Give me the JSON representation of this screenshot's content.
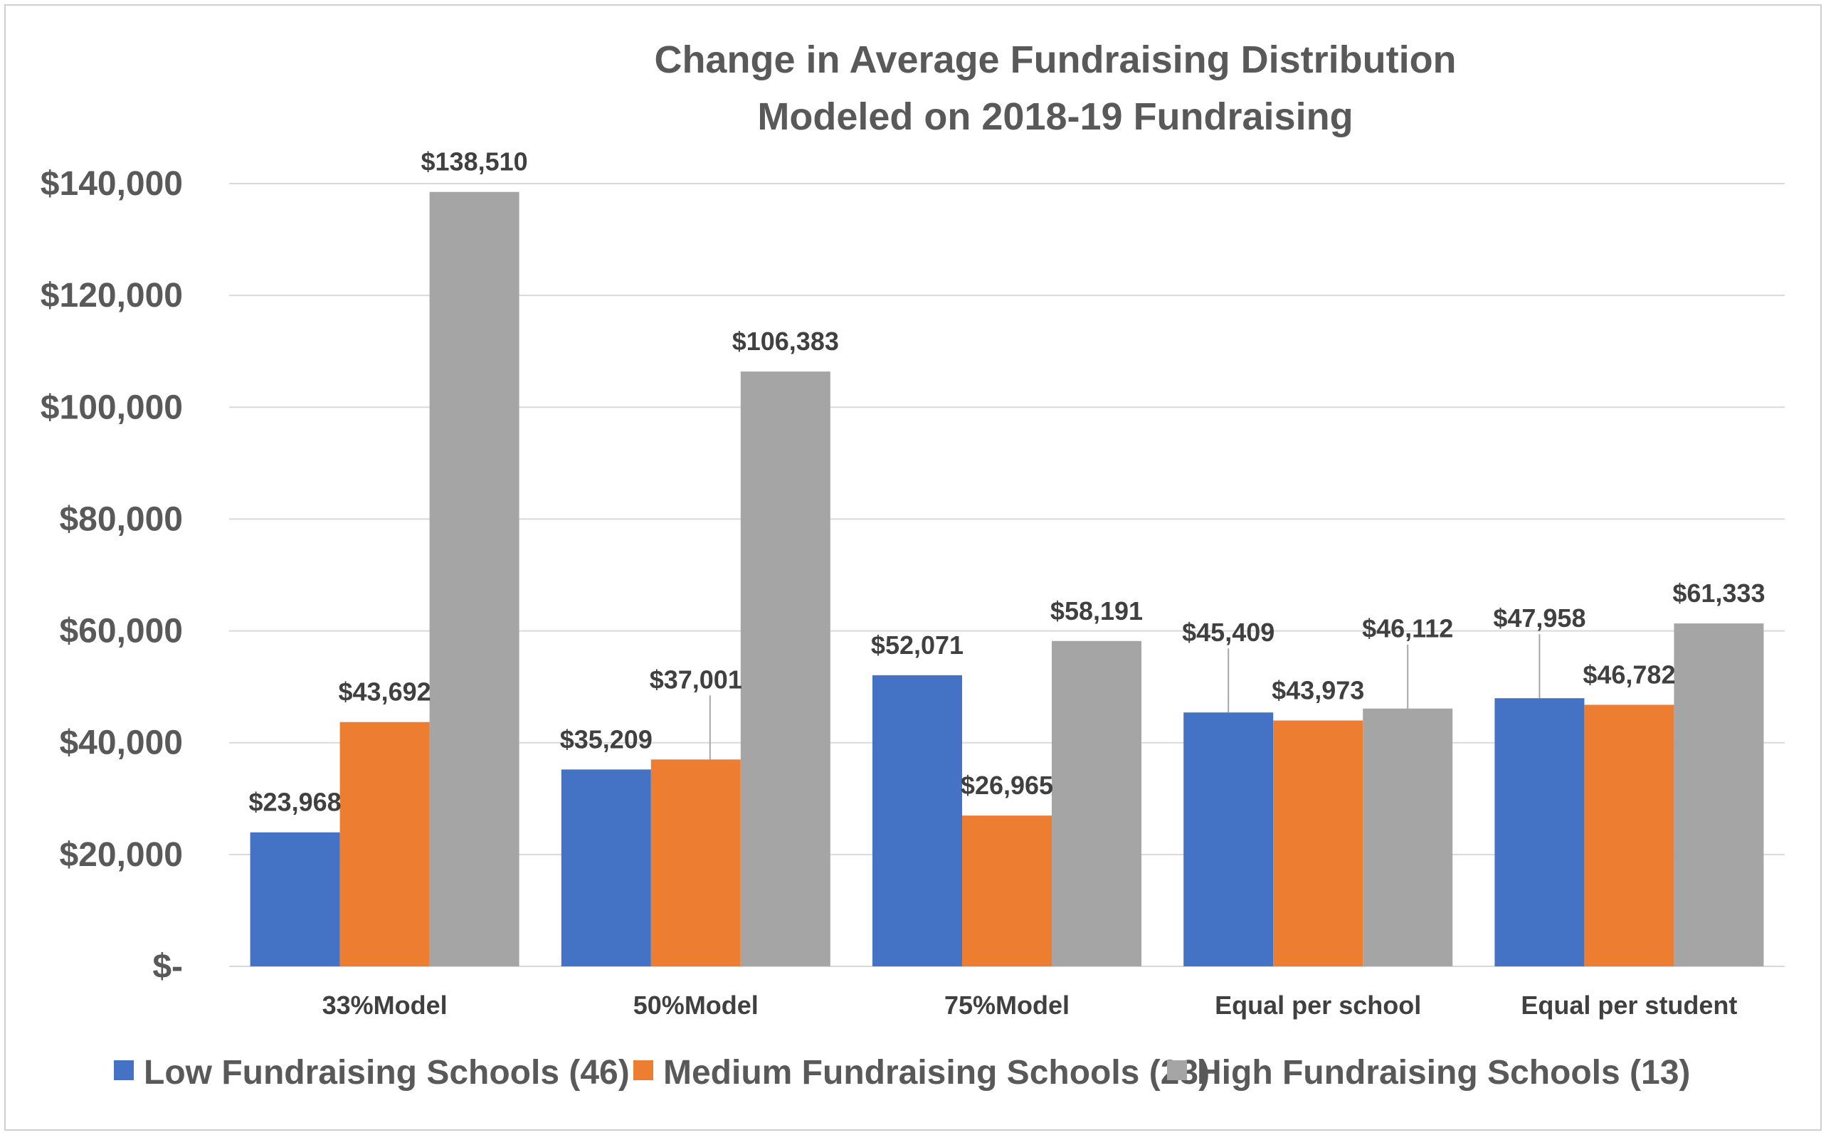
{
  "chart_data": {
    "type": "bar",
    "title": [
      "Change in Average Fundraising Distribution",
      "Modeled on 2018-19 Fundraising"
    ],
    "categories": [
      "33%Model",
      "50%Model",
      "75%Model",
      "Equal per school",
      "Equal per student"
    ],
    "series": [
      {
        "name": "Low Fundraising Schools (46)",
        "color": "#4472c4",
        "values": [
          23968,
          35209,
          52071,
          45409,
          47958
        ],
        "labels": [
          "$23,968",
          "$35,209",
          "$52,071",
          "$45,409",
          "$47,958"
        ]
      },
      {
        "name": "Medium Fundraising Schools (23)",
        "color": "#ed7d31",
        "values": [
          43692,
          37001,
          26965,
          43973,
          46782
        ],
        "labels": [
          "$43,692",
          "$37,001",
          "$26,965",
          "$43,973",
          "$46,782"
        ]
      },
      {
        "name": "High Fundraising Schools (13)",
        "color": "#a5a5a5",
        "values": [
          138510,
          106383,
          58191,
          46112,
          61333
        ],
        "labels": [
          "$138,510",
          "$106,383",
          "$58,191",
          "$46,112",
          "$61,333"
        ]
      }
    ],
    "y_ticks": [
      {
        "value": 0,
        "label": "$-"
      },
      {
        "value": 20000,
        "label": "$20,000"
      },
      {
        "value": 40000,
        "label": "$40,000"
      },
      {
        "value": 60000,
        "label": "$60,000"
      },
      {
        "value": 80000,
        "label": "$80,000"
      },
      {
        "value": 100000,
        "label": "$100,000"
      },
      {
        "value": 120000,
        "label": "$120,000"
      },
      {
        "value": 140000,
        "label": "$140,000"
      }
    ],
    "ylim": [
      0,
      140000
    ],
    "grid": true,
    "legend_position": "bottom"
  }
}
